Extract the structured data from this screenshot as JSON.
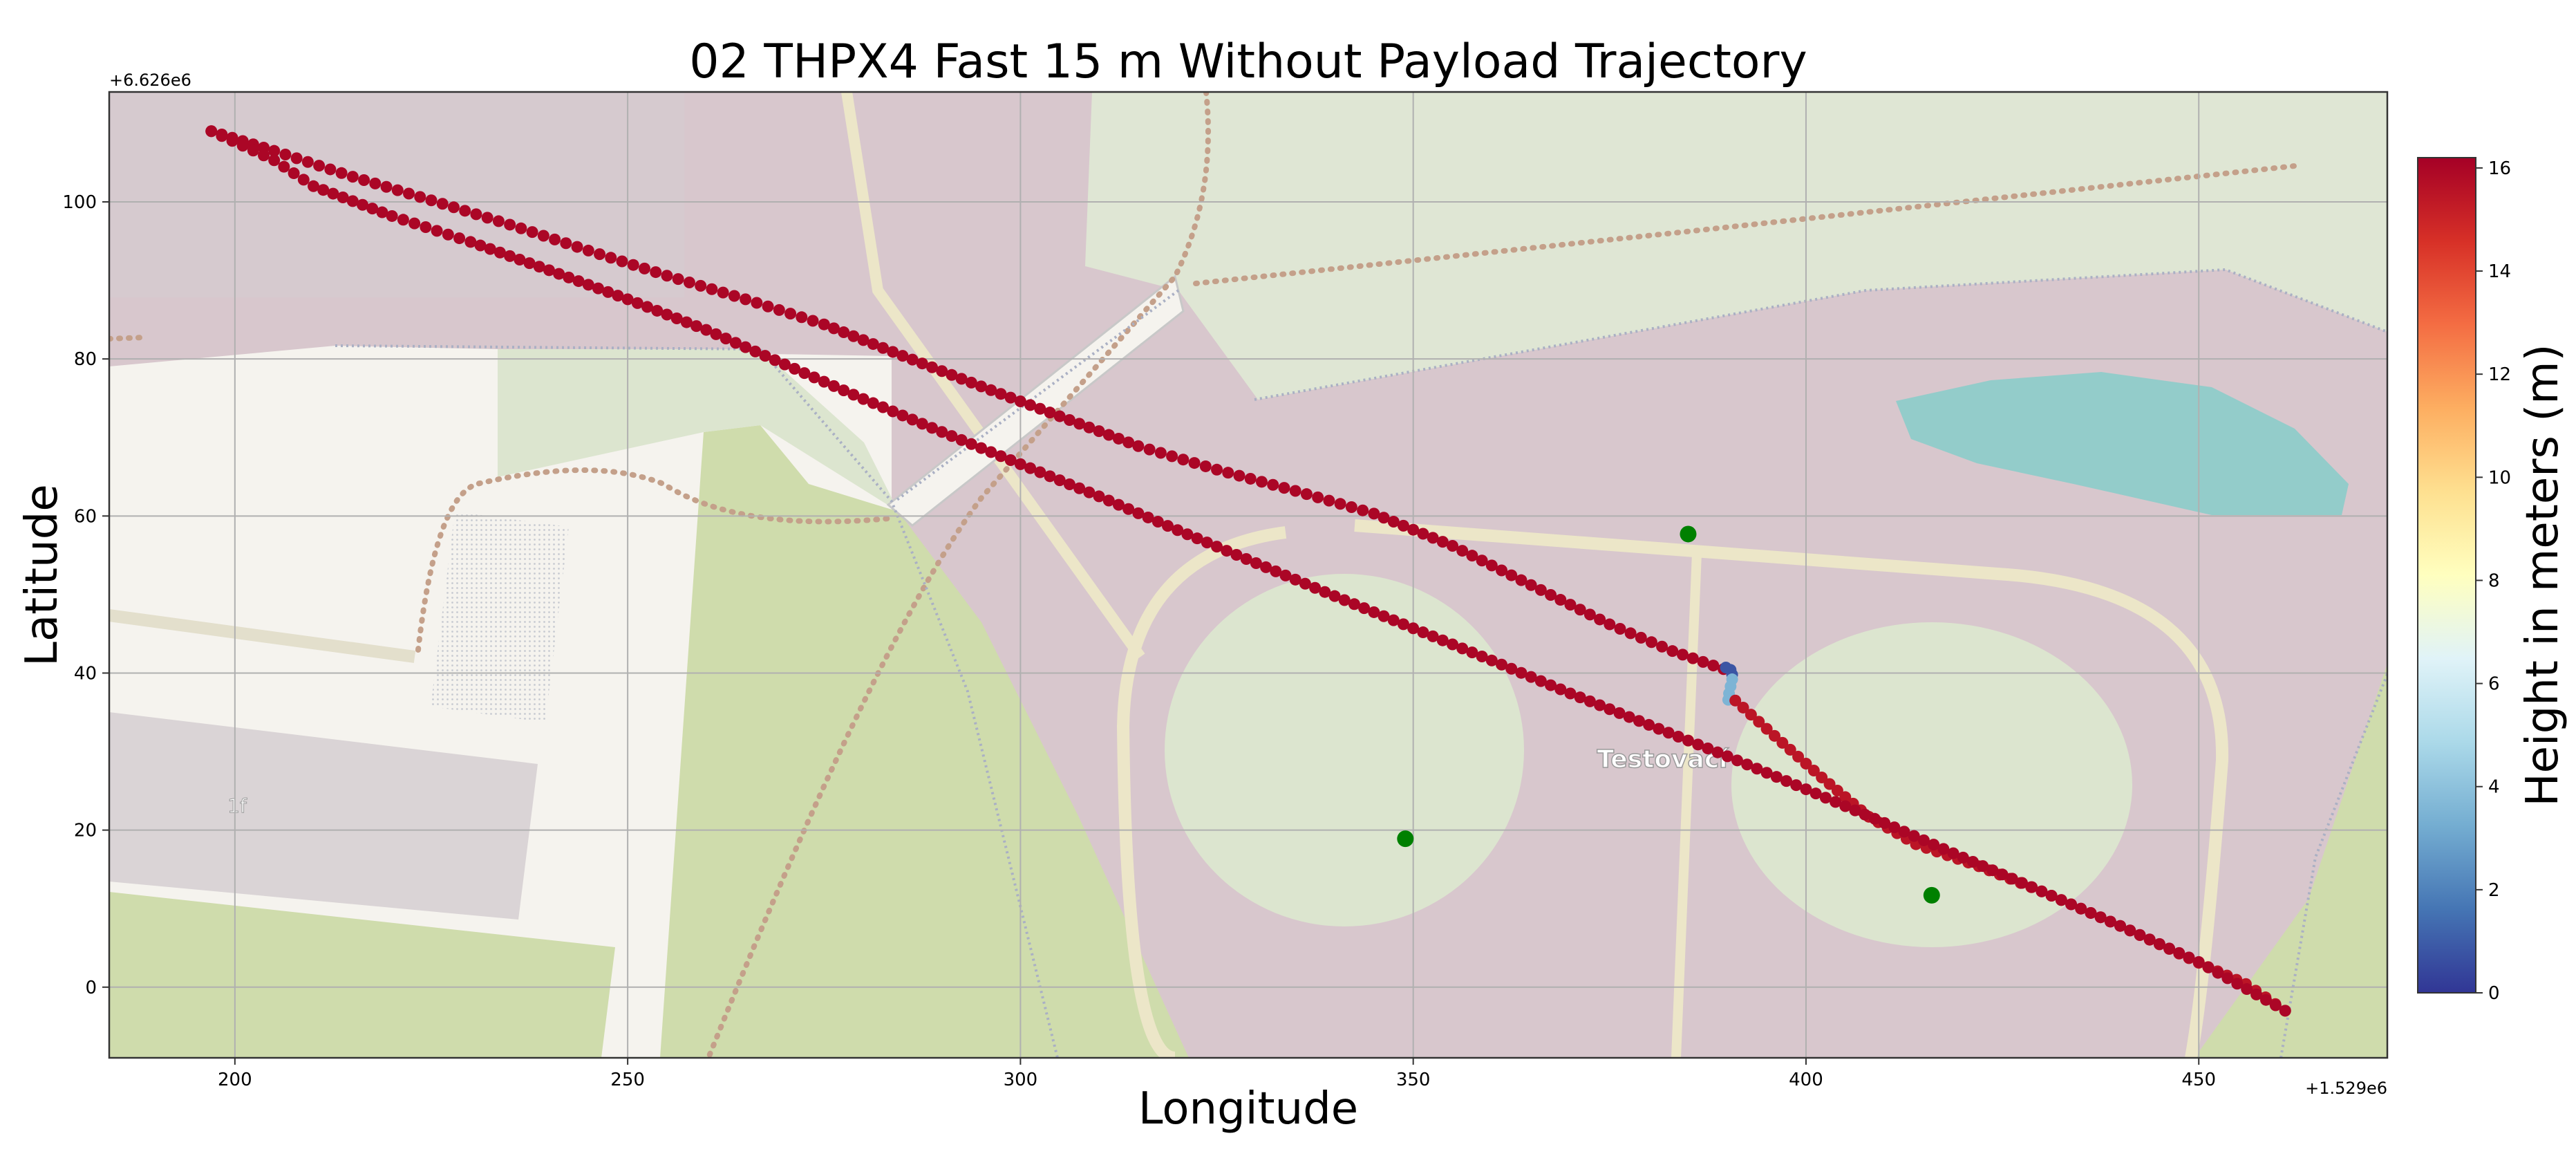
{
  "chart_data": {
    "type": "scatter",
    "title": "02 THPX4 Fast 15 m Without Payload Trajectory",
    "xlabel": "Longitude",
    "ylabel": "Latitude",
    "x_offset_label": "+1.529e6",
    "y_offset_label": "+6.626e6",
    "xlim": [
      184,
      474
    ],
    "ylim": [
      -9,
      114
    ],
    "xticks": [
      200,
      250,
      300,
      350,
      400,
      450
    ],
    "yticks": [
      0,
      20,
      40,
      60,
      80,
      100
    ],
    "xtick_labels": [
      "200",
      "250",
      "300",
      "350",
      "400",
      "450"
    ],
    "ytick_labels": [
      "0",
      "20",
      "40",
      "60",
      "80",
      "100"
    ],
    "grid": true,
    "basemap": "OpenStreetMap tiles",
    "map_labels": [
      "Testovací",
      "1f"
    ],
    "colorbar": {
      "label": "Height in meters (m)",
      "min": 0,
      "max": 16.2,
      "ticks": [
        0,
        2,
        4,
        6,
        8,
        10,
        12,
        14,
        16
      ],
      "tick_labels": [
        "0",
        "2",
        "4",
        "6",
        "8",
        "10",
        "12",
        "14",
        "16"
      ],
      "colormap": "RdYlBu_r",
      "colors": [
        "#313695",
        "#4575b4",
        "#74add1",
        "#abd9e9",
        "#e0f3f8",
        "#ffffbf",
        "#fee090",
        "#fdae61",
        "#f46d43",
        "#d73027",
        "#a50026"
      ]
    },
    "series": [
      {
        "marker": "circle",
        "color_by": "height",
        "segments": [
          {
            "height": 16,
            "points": [
              [
                197,
                109
              ],
              [
                205,
                106.5
              ],
              [
                215,
                103.2
              ],
              [
                225,
                100.2
              ],
              [
                235,
                97.1
              ],
              [
                245,
                93.8
              ],
              [
                255,
                90.6
              ],
              [
                265,
                87.6
              ],
              [
                275,
                84.4
              ],
              [
                285,
                80.4
              ],
              [
                295,
                76.5
              ],
              [
                305,
                72.7
              ],
              [
                315,
                68.9
              ],
              [
                325,
                65.9
              ],
              [
                335,
                63.2
              ],
              [
                345,
                60.3
              ],
              [
                355,
                56.2
              ],
              [
                365,
                51.2
              ],
              [
                375,
                46.2
              ],
              [
                383,
                42.8
              ],
              [
                389.5,
                40.5
              ]
            ]
          },
          {
            "height": 0.8,
            "points": [
              [
                389.8,
                40.7
              ],
              [
                390.4,
                40.4
              ],
              [
                390.6,
                39.8
              ]
            ]
          },
          {
            "height": 3.5,
            "points": [
              [
                390.6,
                39.2
              ],
              [
                390.4,
                38.3
              ],
              [
                390.2,
                37.4
              ],
              [
                390.1,
                36.6
              ]
            ]
          },
          {
            "height": 15.5,
            "points": [
              [
                391,
                36.5
              ],
              [
                396,
                32
              ],
              [
                402,
                26.7
              ],
              [
                408,
                21.7
              ],
              [
                414,
                18.2
              ],
              [
                422,
                15.4
              ],
              [
                430,
                12.2
              ],
              [
                440,
                7.8
              ],
              [
                450,
                3.1
              ],
              [
                456,
                0.4
              ],
              [
                461,
                -3
              ]
            ]
          },
          {
            "height": 16,
            "points": [
              [
                197,
                109
              ],
              [
                205,
                105.3
              ],
              [
                210,
                102
              ],
              [
                220,
                98.2
              ],
              [
                230,
                94.9
              ],
              [
                240,
                91.3
              ],
              [
                250,
                87.6
              ],
              [
                260,
                83.7
              ],
              [
                270,
                79.3
              ],
              [
                280,
                74.9
              ],
              [
                290,
                70.7
              ],
              [
                300,
                66.6
              ],
              [
                310,
                62.5
              ],
              [
                320,
                58.2
              ],
              [
                330,
                54
              ],
              [
                340,
                49.8
              ],
              [
                350,
                45.7
              ],
              [
                360,
                41.6
              ],
              [
                370,
                37.4
              ],
              [
                380,
                33.4
              ],
              [
                390,
                29.4
              ],
              [
                400,
                25.2
              ],
              [
                410,
                20.9
              ],
              [
                420,
                16.5
              ],
              [
                430,
                12.2
              ],
              [
                440,
                7.8
              ],
              [
                450,
                3.2
              ],
              [
                461,
                -3
              ]
            ]
          }
        ]
      }
    ],
    "waypoints": {
      "color": "#008000",
      "points": [
        [
          385,
          57.7
        ],
        [
          349,
          18.9
        ],
        [
          416,
          11.7
        ]
      ]
    }
  }
}
